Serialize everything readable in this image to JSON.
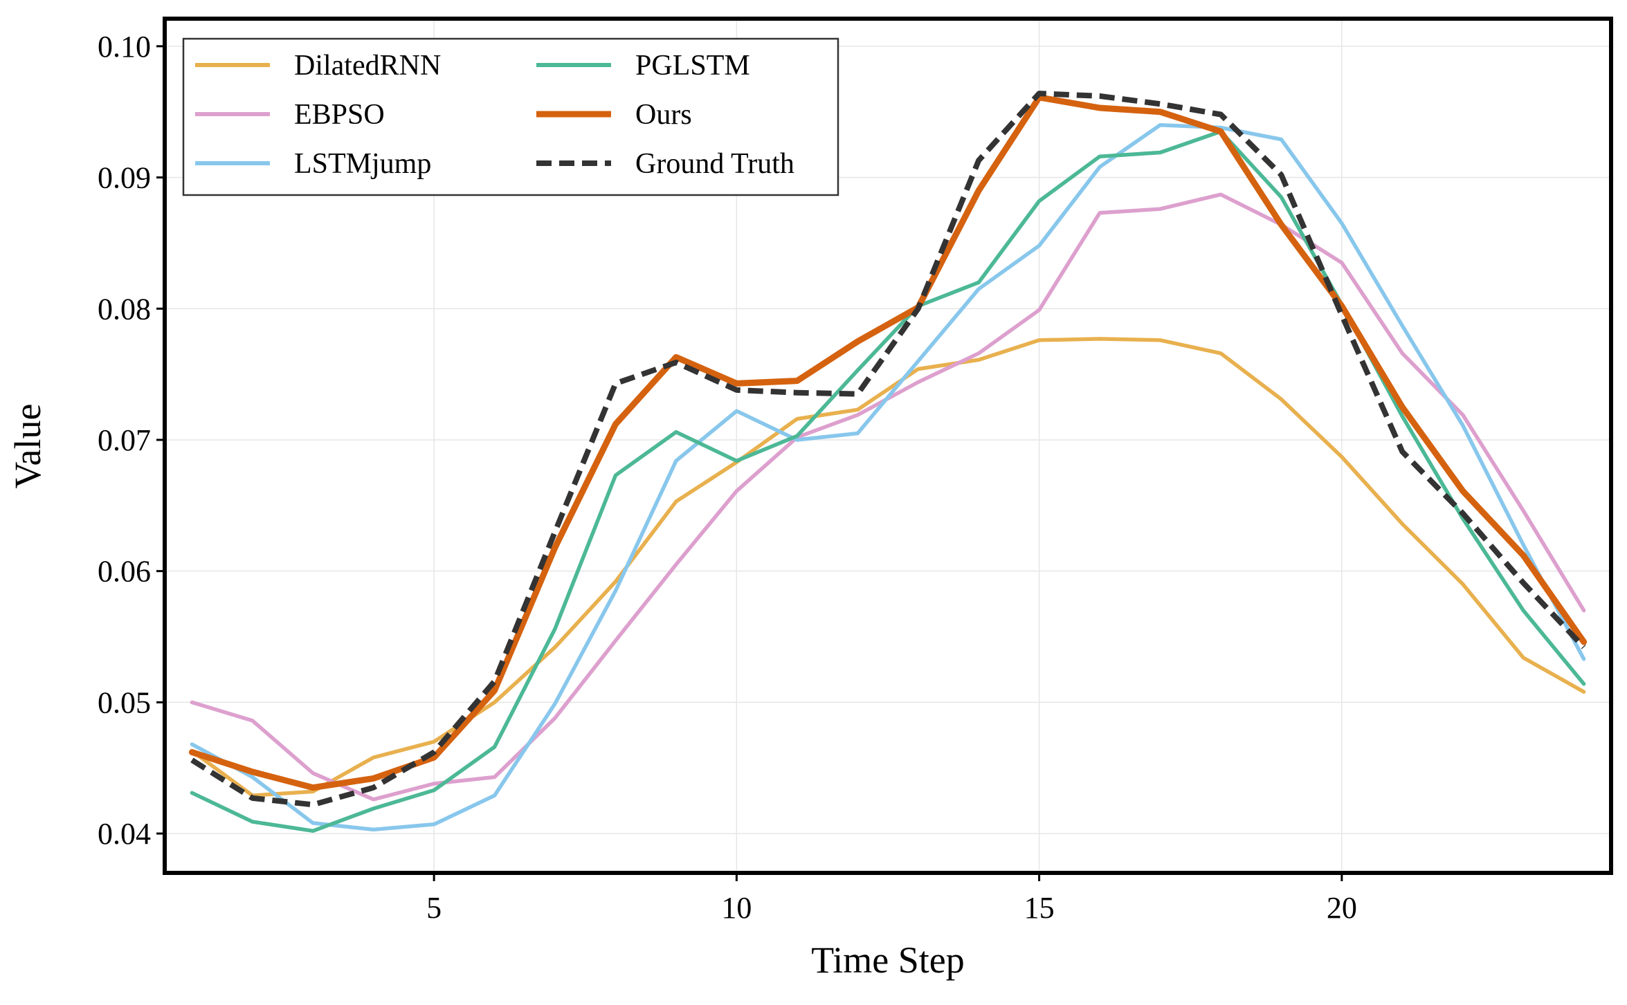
{
  "chart_data": {
    "type": "line",
    "title": "",
    "xlabel": "Time Step",
    "ylabel": "Value",
    "xlim": [
      0.55,
      24.45
    ],
    "ylim": [
      0.037,
      0.1021
    ],
    "xticks": [
      5,
      10,
      15,
      20
    ],
    "xtick_labels": [
      "5",
      "10",
      "15",
      "20"
    ],
    "yticks": [
      0.04,
      0.05,
      0.06,
      0.07,
      0.08,
      0.09,
      0.1
    ],
    "ytick_labels": [
      "0.04",
      "0.05",
      "0.06",
      "0.07",
      "0.08",
      "0.09",
      "0.10"
    ],
    "grid": true,
    "legend_position": "top-left",
    "x": [
      1,
      2,
      3,
      4,
      5,
      6,
      7,
      8,
      9,
      10,
      11,
      12,
      13,
      14,
      15,
      16,
      17,
      18,
      19,
      20,
      21,
      22,
      23,
      24
    ],
    "series": [
      {
        "name": "DilatedRNN",
        "color": "#E8B04E",
        "dash": "solid",
        "values": [
          0.0463,
          0.0429,
          0.0432,
          0.0458,
          0.047,
          0.05,
          0.0542,
          0.0592,
          0.0653,
          0.0683,
          0.0716,
          0.0723,
          0.0754,
          0.0761,
          0.0776,
          0.0777,
          0.0776,
          0.0766,
          0.0731,
          0.0687,
          0.0636,
          0.059,
          0.0534,
          0.0508
        ]
      },
      {
        "name": "EBPSO",
        "color": "#DDA0CE",
        "dash": "solid",
        "values": [
          0.05,
          0.0486,
          0.0446,
          0.0426,
          0.0438,
          0.0443,
          0.0488,
          0.0547,
          0.0605,
          0.0661,
          0.0702,
          0.0719,
          0.0744,
          0.0766,
          0.0799,
          0.0873,
          0.0876,
          0.0887,
          0.0864,
          0.0835,
          0.0766,
          0.0719,
          0.0646,
          0.057
        ]
      },
      {
        "name": "LSTMjump",
        "color": "#88C7EC",
        "dash": "solid",
        "values": [
          0.0468,
          0.0443,
          0.0408,
          0.0403,
          0.0407,
          0.0429,
          0.0499,
          0.0585,
          0.0684,
          0.0722,
          0.07,
          0.0705,
          0.076,
          0.0815,
          0.0848,
          0.0908,
          0.094,
          0.0938,
          0.0929,
          0.0865,
          0.0787,
          0.0711,
          0.062,
          0.0533
        ]
      },
      {
        "name": "PGLSTM",
        "color": "#4CB896",
        "dash": "solid",
        "values": [
          0.0431,
          0.0409,
          0.0402,
          0.0419,
          0.0433,
          0.0466,
          0.0556,
          0.0673,
          0.0706,
          0.0684,
          0.0703,
          0.0753,
          0.0802,
          0.082,
          0.0882,
          0.0916,
          0.0919,
          0.0935,
          0.0885,
          0.0803,
          0.0718,
          0.064,
          0.057,
          0.0514
        ]
      },
      {
        "name": "Ours",
        "color": "#D5620F",
        "dash": "solid",
        "values": [
          0.0462,
          0.0447,
          0.0435,
          0.0442,
          0.0458,
          0.0509,
          0.0618,
          0.0712,
          0.0763,
          0.0743,
          0.0745,
          0.0775,
          0.0801,
          0.089,
          0.0961,
          0.0953,
          0.095,
          0.0935,
          0.0864,
          0.0802,
          0.0725,
          0.0661,
          0.0612,
          0.0546
        ]
      },
      {
        "name": "Ground Truth",
        "color": "#333333",
        "dash": "dashed",
        "values": [
          0.0456,
          0.0427,
          0.0422,
          0.0435,
          0.0462,
          0.0516,
          0.063,
          0.0743,
          0.0759,
          0.0738,
          0.0736,
          0.0735,
          0.08,
          0.0913,
          0.0964,
          0.0962,
          0.0956,
          0.0948,
          0.0902,
          0.0795,
          0.0691,
          0.0644,
          0.0591,
          0.0542
        ]
      }
    ]
  }
}
